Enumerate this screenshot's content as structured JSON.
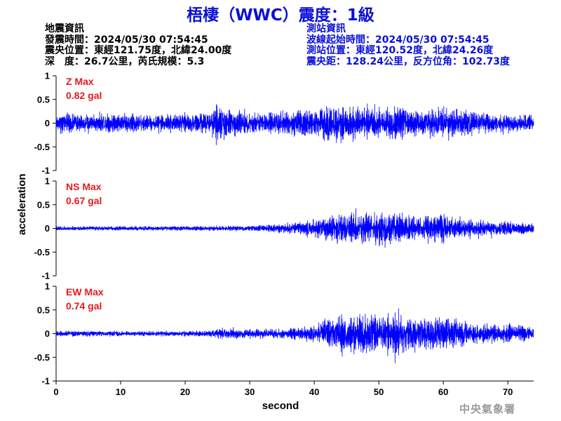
{
  "title": "梧棲（WWC）震度：1級",
  "info_left": {
    "heading": "地震資訊",
    "time": "發震時間：2024/05/30 07:54:45",
    "epicenter": "震央位置：東經121.75度，北緯24.00度",
    "depth": "深　度：26.7公里，芮氏規模：5.3"
  },
  "info_right": {
    "heading": "測站資訊",
    "wave_start": "波線起始時間：2024/05/30 07:54:45",
    "station_pos": "測站位置：東經120.52度，北緯24.26度",
    "distance": "震央距：128.24公里，反方位角：102.73度"
  },
  "colors": {
    "title": "#0a10d6",
    "trace": "#0000ff",
    "label": "#e8191e",
    "credit": "#9a9a9a"
  },
  "credit": "中央氣象署",
  "chart_data": {
    "type": "line",
    "xlabel": "second",
    "ylabel": "acceleration",
    "xlim": [
      0,
      74
    ],
    "x_ticks": [
      0,
      10,
      20,
      30,
      40,
      50,
      60,
      70
    ],
    "grid": false,
    "panels": [
      {
        "name": "Z",
        "label": "Z Max",
        "max_text": "0.82 gal",
        "ylim": [
          -1,
          1
        ],
        "y_ticks": [
          "1",
          "0.5",
          "0",
          "-0.5",
          "-1"
        ],
        "envelope": [
          [
            0,
            0.22
          ],
          [
            5,
            0.22
          ],
          [
            10,
            0.22
          ],
          [
            15,
            0.2
          ],
          [
            20,
            0.22
          ],
          [
            24,
            0.25
          ],
          [
            25,
            0.45
          ],
          [
            26,
            0.35
          ],
          [
            30,
            0.25
          ],
          [
            36,
            0.28
          ],
          [
            40,
            0.32
          ],
          [
            42,
            0.45
          ],
          [
            45,
            0.38
          ],
          [
            50,
            0.35
          ],
          [
            53,
            0.42
          ],
          [
            56,
            0.32
          ],
          [
            60,
            0.35
          ],
          [
            62,
            0.35
          ],
          [
            65,
            0.25
          ],
          [
            70,
            0.2
          ],
          [
            74,
            0.18
          ]
        ]
      },
      {
        "name": "NS",
        "label": "NS Max",
        "max_text": "0.67 gal",
        "ylim": [
          -1,
          1
        ],
        "y_ticks": [
          "1",
          "0.5",
          "0",
          "-0.5",
          "-1"
        ],
        "envelope": [
          [
            0,
            0.05
          ],
          [
            10,
            0.05
          ],
          [
            20,
            0.05
          ],
          [
            30,
            0.06
          ],
          [
            35,
            0.1
          ],
          [
            38,
            0.15
          ],
          [
            40,
            0.2
          ],
          [
            42,
            0.28
          ],
          [
            45,
            0.35
          ],
          [
            50,
            0.42
          ],
          [
            53,
            0.38
          ],
          [
            56,
            0.25
          ],
          [
            60,
            0.35
          ],
          [
            63,
            0.2
          ],
          [
            66,
            0.18
          ],
          [
            70,
            0.15
          ],
          [
            74,
            0.12
          ]
        ]
      },
      {
        "name": "EW",
        "label": "EW Max",
        "max_text": "0.74 gal",
        "ylim": [
          -1,
          1
        ],
        "y_ticks": [
          "1",
          "0.5",
          "0",
          "-0.5",
          "-1"
        ],
        "envelope": [
          [
            0,
            0.06
          ],
          [
            10,
            0.06
          ],
          [
            20,
            0.06
          ],
          [
            24,
            0.08
          ],
          [
            25,
            0.13
          ],
          [
            30,
            0.1
          ],
          [
            35,
            0.12
          ],
          [
            40,
            0.2
          ],
          [
            42,
            0.35
          ],
          [
            45,
            0.45
          ],
          [
            48,
            0.5
          ],
          [
            50,
            0.42
          ],
          [
            53,
            0.48
          ],
          [
            56,
            0.35
          ],
          [
            60,
            0.42
          ],
          [
            63,
            0.3
          ],
          [
            66,
            0.22
          ],
          [
            70,
            0.2
          ],
          [
            74,
            0.15
          ]
        ]
      }
    ]
  }
}
